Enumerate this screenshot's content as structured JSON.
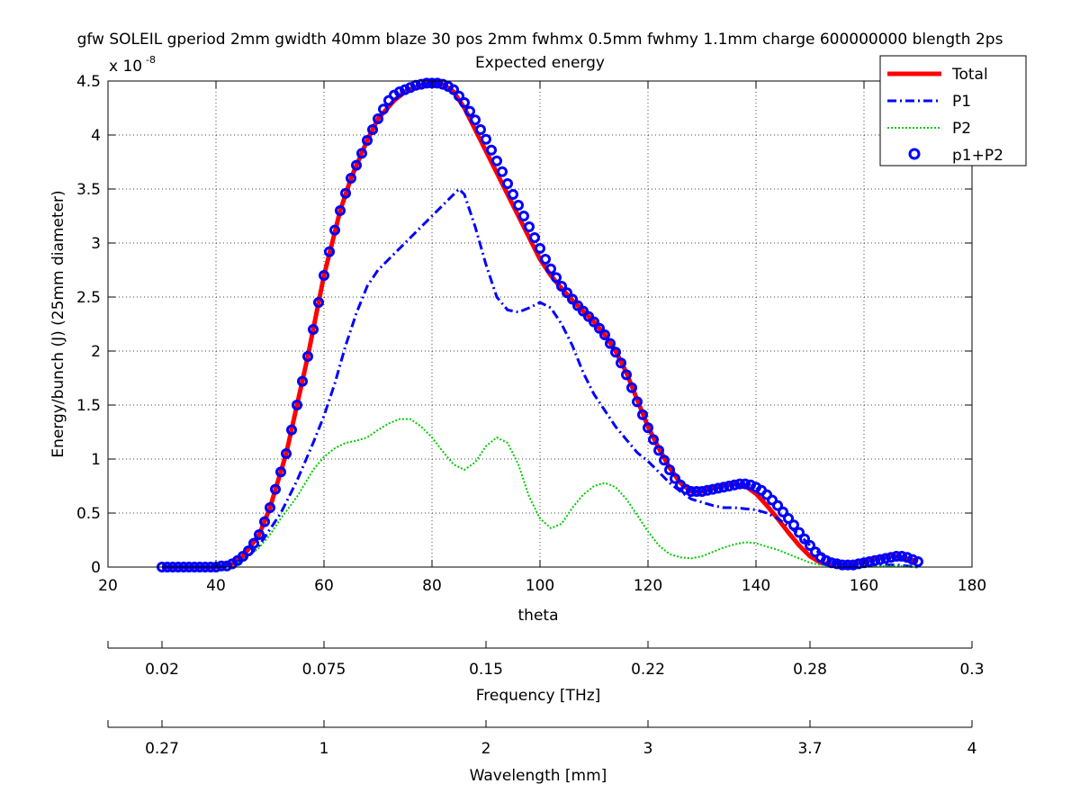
{
  "chart_data": {
    "type": "line",
    "title": "gfw SOLEIL gperiod 2mm gwidth 40mm blaze 30 pos 2mm fwhmx 0.5mm fwhmy 1.1mm charge 600000000 blength 2ps",
    "subtitle": "Expected energy",
    "xlabel": "theta",
    "ylabel": "Energy/bunch (J)  (25mm diameter)",
    "y_exponent_label": "x 10",
    "y_exponent": "-8",
    "xlim": [
      20,
      180
    ],
    "ylim": [
      0,
      4.5
    ],
    "grid": true,
    "legend_position": "top-right",
    "x_ticks": [
      "20",
      "40",
      "60",
      "80",
      "100",
      "120",
      "140",
      "160",
      "180"
    ],
    "y_ticks": [
      "0",
      "0.5",
      "1",
      "1.5",
      "2",
      "2.5",
      "3",
      "3.5",
      "4",
      "4.5"
    ],
    "secondary_axes": [
      {
        "label": "Frequency [THz]",
        "ticks": [
          {
            "theta": 20,
            "label": ""
          },
          {
            "theta": 30,
            "label": "0.02"
          },
          {
            "theta": 60,
            "label": "0.075"
          },
          {
            "theta": 90,
            "label": "0.15"
          },
          {
            "theta": 120,
            "label": "0.22"
          },
          {
            "theta": 150,
            "label": "0.28"
          },
          {
            "theta": 180,
            "label": "0.3"
          }
        ]
      },
      {
        "label": "Wavelength [mm]",
        "ticks": [
          {
            "theta": 20,
            "label": ""
          },
          {
            "theta": 30,
            "label": "0.27"
          },
          {
            "theta": 60,
            "label": "1"
          },
          {
            "theta": 90,
            "label": "2"
          },
          {
            "theta": 120,
            "label": "3"
          },
          {
            "theta": 150,
            "label": "3.7"
          },
          {
            "theta": 180,
            "label": "4"
          }
        ]
      }
    ],
    "series": [
      {
        "name": "Total",
        "style": "solid",
        "color": "#ff0000",
        "x": [
          30,
          35,
          40,
          43,
          45,
          48,
          50,
          53,
          55,
          57,
          60,
          63,
          65,
          68,
          70,
          73,
          75,
          78,
          80,
          82,
          84,
          86,
          88,
          90,
          92,
          94,
          96,
          98,
          100,
          102,
          104,
          106,
          108,
          110,
          112,
          114,
          116,
          118,
          120,
          122,
          124,
          126,
          128,
          130,
          132,
          134,
          136,
          138,
          140,
          142,
          144,
          146,
          148,
          150,
          152,
          154,
          156,
          158,
          160,
          162,
          164,
          166,
          168,
          170
        ],
        "y": [
          0,
          0,
          0,
          0.03,
          0.1,
          0.3,
          0.55,
          1.05,
          1.5,
          1.95,
          2.7,
          3.3,
          3.6,
          3.95,
          4.15,
          4.32,
          4.4,
          4.46,
          4.48,
          4.47,
          4.4,
          4.25,
          4.05,
          3.85,
          3.65,
          3.45,
          3.25,
          3.05,
          2.85,
          2.7,
          2.58,
          2.47,
          2.37,
          2.27,
          2.15,
          2.0,
          1.8,
          1.55,
          1.3,
          1.1,
          0.92,
          0.78,
          0.7,
          0.7,
          0.73,
          0.76,
          0.77,
          0.75,
          0.68,
          0.57,
          0.45,
          0.32,
          0.2,
          0.1,
          0.04,
          0.02,
          0.02,
          0.04,
          0.06,
          0.08,
          0.1,
          0.1,
          0.08,
          0.05
        ]
      },
      {
        "name": "P1",
        "style": "dashdot",
        "color": "#0000ff",
        "x": [
          30,
          40,
          44,
          46,
          48,
          50,
          52,
          55,
          58,
          60,
          62,
          64,
          66,
          68,
          70,
          72,
          74,
          76,
          78,
          80,
          82,
          84,
          85,
          86,
          88,
          90,
          92,
          94,
          96,
          98,
          100,
          102,
          104,
          106,
          108,
          110,
          112,
          114,
          116,
          118,
          120,
          122,
          124,
          126,
          128,
          130,
          132,
          134,
          136,
          138,
          140,
          142,
          144,
          146,
          148,
          150,
          152,
          154,
          156,
          158,
          160,
          162,
          164,
          166,
          168,
          170
        ],
        "y": [
          0,
          0,
          0.05,
          0.1,
          0.2,
          0.35,
          0.5,
          0.8,
          1.15,
          1.4,
          1.7,
          2.05,
          2.35,
          2.6,
          2.75,
          2.85,
          2.95,
          3.05,
          3.15,
          3.25,
          3.35,
          3.45,
          3.5,
          3.45,
          3.15,
          2.8,
          2.5,
          2.38,
          2.36,
          2.4,
          2.45,
          2.4,
          2.25,
          2.05,
          1.8,
          1.6,
          1.45,
          1.3,
          1.18,
          1.06,
          0.98,
          0.88,
          0.78,
          0.7,
          0.63,
          0.6,
          0.57,
          0.55,
          0.55,
          0.54,
          0.53,
          0.5,
          0.45,
          0.38,
          0.3,
          0.2,
          0.12,
          0.06,
          0.03,
          0.01,
          0.01,
          0.02,
          0.02,
          0.02,
          0.01,
          0
        ]
      },
      {
        "name": "P2",
        "style": "dotted",
        "color": "#00cc00",
        "x": [
          30,
          40,
          44,
          46,
          48,
          50,
          52,
          55,
          58,
          60,
          62,
          64,
          66,
          68,
          70,
          72,
          74,
          76,
          78,
          80,
          82,
          84,
          86,
          88,
          90,
          92,
          94,
          96,
          98,
          100,
          102,
          104,
          106,
          108,
          110,
          112,
          114,
          116,
          118,
          120,
          122,
          124,
          126,
          128,
          130,
          132,
          134,
          136,
          138,
          140,
          142,
          144,
          146,
          148,
          150,
          152,
          154,
          156,
          158,
          160,
          162,
          164,
          166,
          168,
          170
        ],
        "y": [
          0,
          0,
          0.04,
          0.1,
          0.18,
          0.3,
          0.45,
          0.65,
          0.9,
          1.02,
          1.1,
          1.15,
          1.17,
          1.2,
          1.27,
          1.33,
          1.37,
          1.37,
          1.3,
          1.2,
          1.07,
          0.95,
          0.9,
          0.97,
          1.12,
          1.2,
          1.15,
          0.95,
          0.65,
          0.45,
          0.36,
          0.4,
          0.55,
          0.67,
          0.75,
          0.78,
          0.74,
          0.63,
          0.48,
          0.33,
          0.2,
          0.12,
          0.09,
          0.08,
          0.1,
          0.14,
          0.18,
          0.21,
          0.23,
          0.22,
          0.19,
          0.16,
          0.12,
          0.08,
          0.04,
          0.02,
          0.01,
          0,
          0,
          0,
          0.005,
          0.01,
          0.01,
          0.005,
          0
        ]
      },
      {
        "name": "p1+P2",
        "style": "markers",
        "color": "#0000ff",
        "x": [
          30,
          31,
          32,
          33,
          34,
          35,
          36,
          37,
          38,
          39,
          40,
          41,
          42,
          43,
          44,
          45,
          46,
          47,
          48,
          49,
          50,
          51,
          52,
          53,
          54,
          55,
          56,
          57,
          58,
          59,
          60,
          61,
          62,
          63,
          64,
          65,
          66,
          67,
          68,
          69,
          70,
          71,
          72,
          73,
          74,
          75,
          76,
          77,
          78,
          79,
          80,
          81,
          82,
          83,
          84,
          85,
          86,
          87,
          88,
          89,
          90,
          91,
          92,
          93,
          94,
          95,
          96,
          97,
          98,
          99,
          100,
          101,
          102,
          103,
          104,
          105,
          106,
          107,
          108,
          109,
          110,
          111,
          112,
          113,
          114,
          115,
          116,
          117,
          118,
          119,
          120,
          121,
          122,
          123,
          124,
          125,
          126,
          127,
          128,
          129,
          130,
          131,
          132,
          133,
          134,
          135,
          136,
          137,
          138,
          139,
          140,
          141,
          142,
          143,
          144,
          145,
          146,
          147,
          148,
          149,
          150,
          151,
          152,
          153,
          154,
          155,
          156,
          157,
          158,
          159,
          160,
          161,
          162,
          163,
          164,
          165,
          166,
          167,
          168,
          169,
          170
        ],
        "y": [
          0,
          0,
          0,
          0,
          0,
          0,
          0,
          0,
          0,
          0,
          0,
          0.01,
          0.01,
          0.03,
          0.06,
          0.1,
          0.15,
          0.22,
          0.3,
          0.42,
          0.55,
          0.72,
          0.88,
          1.05,
          1.27,
          1.5,
          1.72,
          1.95,
          2.2,
          2.45,
          2.7,
          2.92,
          3.12,
          3.3,
          3.46,
          3.6,
          3.72,
          3.83,
          3.95,
          4.05,
          4.15,
          4.24,
          4.32,
          4.37,
          4.4,
          4.42,
          4.44,
          4.46,
          4.47,
          4.48,
          4.48,
          4.48,
          4.47,
          4.45,
          4.42,
          4.36,
          4.3,
          4.22,
          4.14,
          4.05,
          3.96,
          3.86,
          3.76,
          3.66,
          3.55,
          3.45,
          3.35,
          3.25,
          3.15,
          3.05,
          2.95,
          2.85,
          2.76,
          2.68,
          2.6,
          2.54,
          2.48,
          2.42,
          2.37,
          2.32,
          2.27,
          2.21,
          2.15,
          2.07,
          1.99,
          1.89,
          1.78,
          1.66,
          1.53,
          1.41,
          1.29,
          1.18,
          1.08,
          0.99,
          0.9,
          0.82,
          0.76,
          0.72,
          0.7,
          0.7,
          0.7,
          0.71,
          0.72,
          0.73,
          0.74,
          0.75,
          0.76,
          0.77,
          0.77,
          0.76,
          0.74,
          0.71,
          0.67,
          0.62,
          0.57,
          0.51,
          0.45,
          0.39,
          0.32,
          0.26,
          0.2,
          0.14,
          0.09,
          0.06,
          0.04,
          0.03,
          0.02,
          0.02,
          0.02,
          0.03,
          0.04,
          0.05,
          0.06,
          0.07,
          0.08,
          0.09,
          0.1,
          0.1,
          0.09,
          0.07,
          0.05
        ]
      }
    ]
  }
}
